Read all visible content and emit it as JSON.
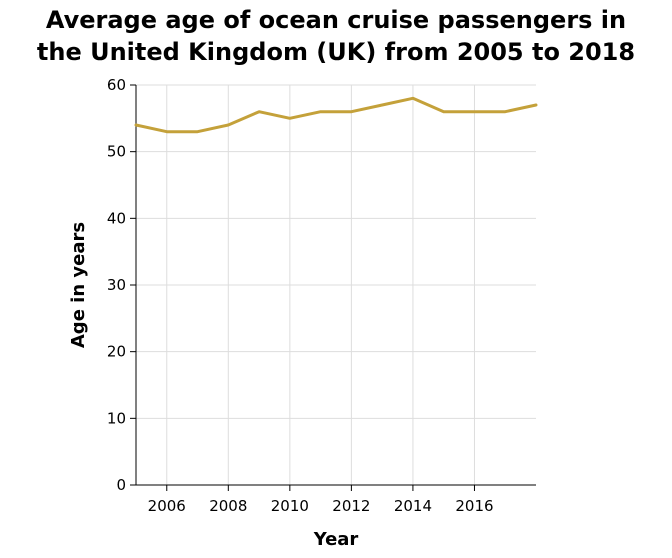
{
  "chart_data": {
    "type": "line",
    "title_lines": [
      "Average age of ocean cruise passengers in",
      "the United Kingdom (UK) from 2005 to 2018"
    ],
    "xlabel": "Year",
    "ylabel": "Age in years",
    "xlim": [
      2005,
      2018
    ],
    "ylim": [
      0,
      60
    ],
    "x_ticks": [
      2006,
      2008,
      2010,
      2012,
      2014,
      2016
    ],
    "y_ticks": [
      0,
      10,
      20,
      30,
      40,
      50,
      60
    ],
    "grid": true,
    "line_color": "#c4a13a",
    "series": [
      {
        "x": [
          2005,
          2006,
          2007,
          2008,
          2009,
          2010,
          2011,
          2012,
          2013,
          2014,
          2015,
          2016,
          2017,
          2018
        ],
        "values": [
          54,
          53,
          53,
          54,
          56,
          55,
          56,
          56,
          57,
          58,
          56,
          56,
          56,
          57
        ]
      }
    ]
  }
}
